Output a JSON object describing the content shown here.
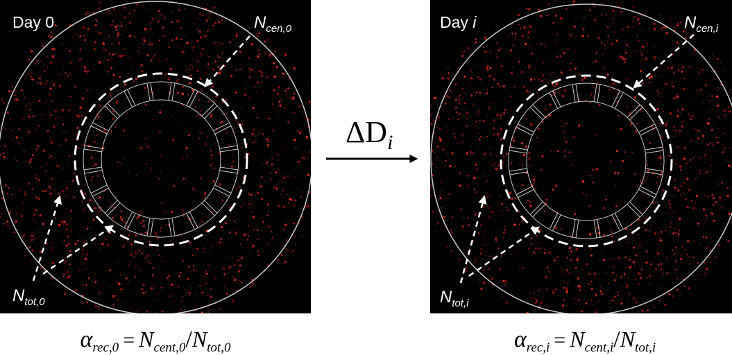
{
  "panels": [
    {
      "day": "Day",
      "day_index": "0",
      "cen": {
        "n": "N",
        "sub": "cen,0"
      },
      "tot": {
        "n": "N",
        "sub": "tot,0"
      },
      "formula": {
        "alpha": "α",
        "alpha_sub": "rec,0",
        "eq": "=",
        "n1": "N",
        "n1_sub": "cent,0",
        "slash": "/",
        "n2": "N",
        "n2_sub": "tot,0"
      }
    },
    {
      "day": "Day",
      "day_index": "i",
      "cen": {
        "n": "N",
        "sub": "cen,i"
      },
      "tot": {
        "n": "N",
        "sub": "tot,i"
      },
      "formula": {
        "alpha": "α",
        "alpha_sub": "rec,i",
        "eq": "=",
        "n1": "N",
        "n1_sub": "cent,i",
        "slash": "/",
        "n2": "N",
        "n2_sub": "tot,i"
      }
    }
  ],
  "transition": {
    "delta": "ΔD",
    "sub": "i"
  }
}
